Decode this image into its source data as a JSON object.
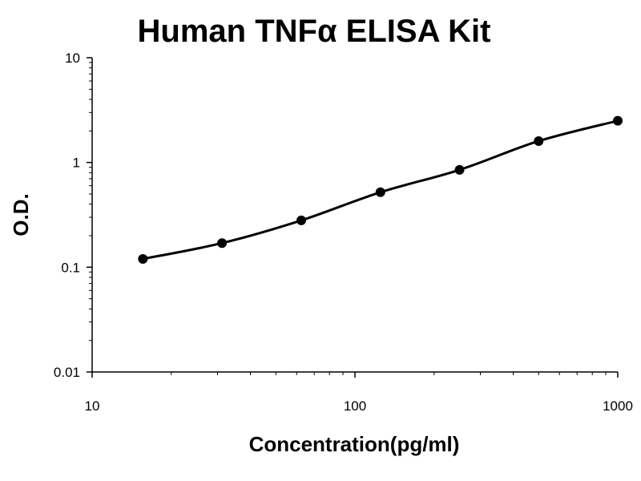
{
  "chart_data": {
    "type": "scatter",
    "title": "Human TNFα ELISA Kit",
    "xlabel": "Concentration(pg/ml)",
    "ylabel": "O.D.",
    "x_scale": "log",
    "y_scale": "log",
    "xlim": [
      10,
      1000
    ],
    "ylim": [
      0.01,
      10
    ],
    "x_ticks": [
      "10",
      "100",
      "1000"
    ],
    "y_ticks": [
      "0.01",
      "0.1",
      "1",
      "10"
    ],
    "grid": false,
    "legend": "none",
    "series": [
      {
        "x": [
          15.6,
          31.2,
          62.5,
          125,
          250,
          500,
          1000
        ],
        "y": [
          0.12,
          0.17,
          0.28,
          0.52,
          0.85,
          1.6,
          2.5
        ],
        "marker": "circle",
        "fit_line": true,
        "color": "#000000"
      }
    ]
  }
}
